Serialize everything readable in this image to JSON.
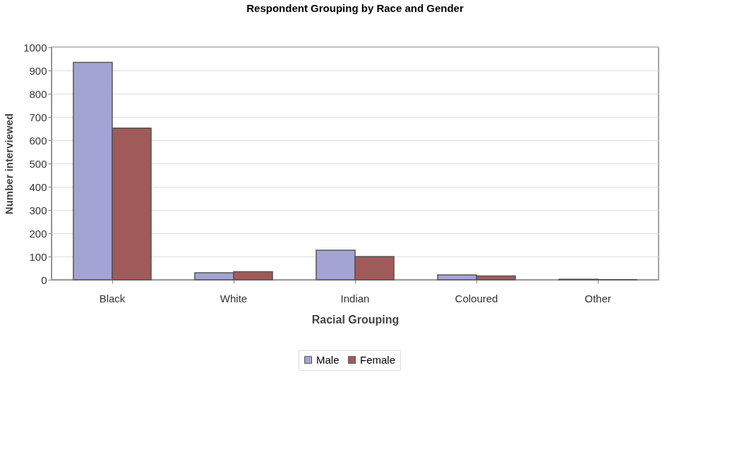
{
  "chart_data": {
    "type": "bar",
    "title": "Respondent Grouping by Race and Gender",
    "xlabel": "Racial Grouping",
    "ylabel": "Number interviewed",
    "categories": [
      "Black",
      "White",
      "Indian",
      "Coloured",
      "Other"
    ],
    "series": [
      {
        "name": "Male",
        "color": "#a4a4d4",
        "values": [
          935,
          30,
          127,
          21,
          2
        ]
      },
      {
        "name": "Female",
        "color": "#a05a5a",
        "values": [
          652,
          35,
          100,
          17,
          1
        ]
      }
    ],
    "ylim": [
      0,
      1000
    ],
    "yticks": [
      0,
      100,
      200,
      300,
      400,
      500,
      600,
      700,
      800,
      900,
      1000
    ],
    "grid": "y",
    "legend": "bottom"
  }
}
